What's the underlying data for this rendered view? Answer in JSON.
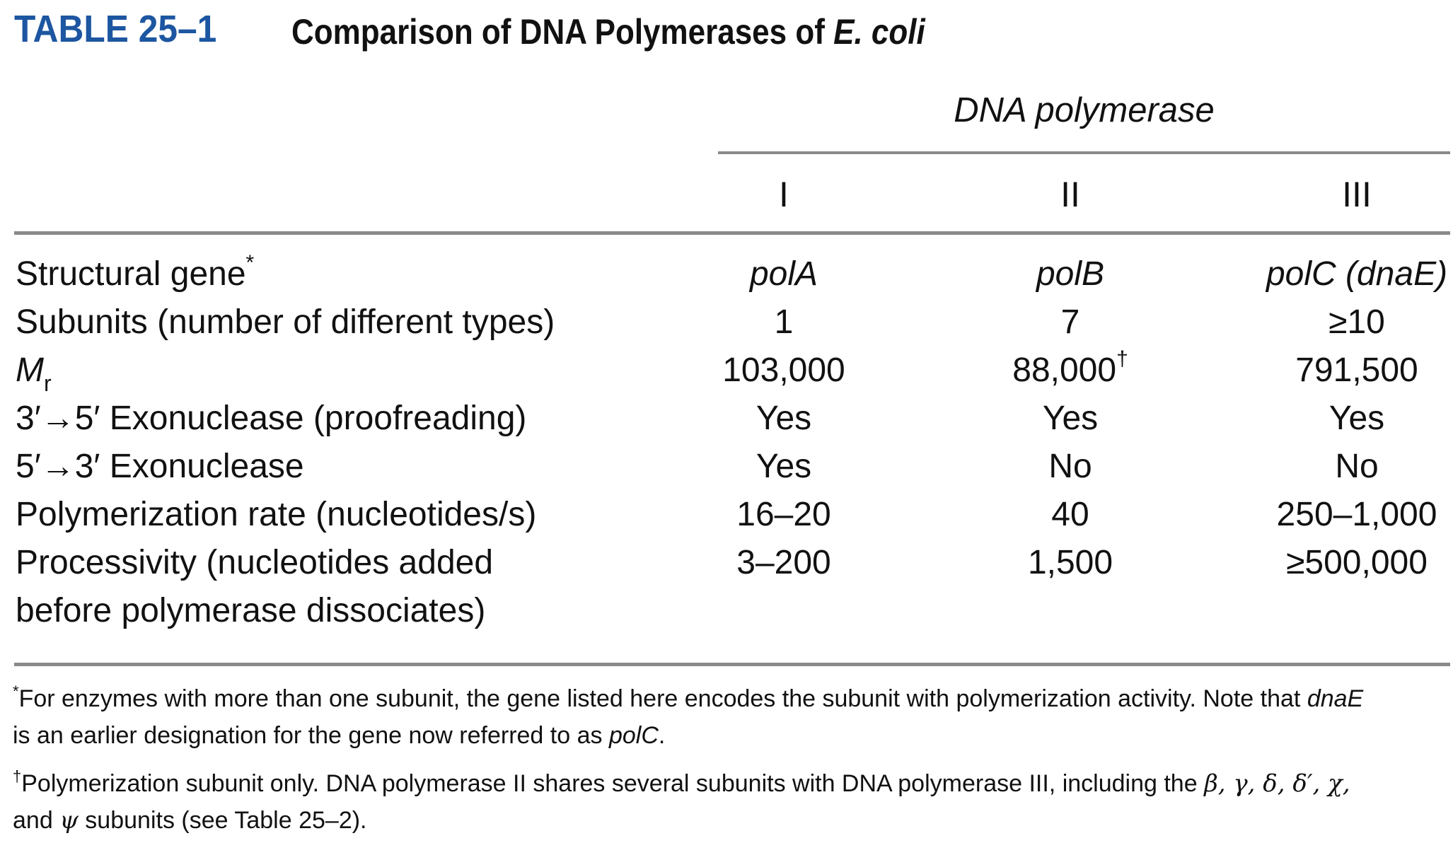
{
  "title": {
    "number": "TABLE 25–1",
    "text_prefix": "Comparison of DNA Polymerases of ",
    "text_organism": "E. coli"
  },
  "spanner": "DNA polymerase",
  "columns": [
    "I",
    "II",
    "III"
  ],
  "rows": [
    {
      "label": "Structural gene",
      "label_mark": "*",
      "values": [
        "polA",
        "polB",
        "polC (dnaE)"
      ]
    },
    {
      "label": "Subunits (number of different types)",
      "values": [
        "1",
        "7",
        "≥10"
      ]
    },
    {
      "label": "M",
      "label_sub": "r",
      "values": [
        "103,000",
        "88,000",
        "791,500"
      ],
      "value_mark_col2": "†"
    },
    {
      "label": "3′→5′ Exonuclease (proofreading)",
      "values": [
        "Yes",
        "Yes",
        "Yes"
      ]
    },
    {
      "label": "5′→3′ Exonuclease",
      "values": [
        "Yes",
        "No",
        "No"
      ]
    },
    {
      "label": "Polymerization rate (nucleotides/s)",
      "values": [
        "16–20",
        "40",
        "250–1,000"
      ]
    },
    {
      "label_line1": "Processivity (nucleotides added",
      "label_line2": "before polymerase dissociates)",
      "values": [
        "3–200",
        "1,500",
        "≥500,000"
      ]
    }
  ],
  "footnotes": {
    "fn1": {
      "mark": "*",
      "text_a": "For enzymes with more than one subunit, the gene listed here encodes the subunit with polymerization activity. Note that ",
      "ital_a": "dnaE",
      "text_b": "is an earlier designation for the gene now referred to as ",
      "ital_b": "polC",
      "text_c": "."
    },
    "fn2": {
      "mark": "†",
      "text_a": "Polymerization subunit only. DNA polymerase II shares several subunits with DNA polymerase III, including the ",
      "greek_a": "β, γ, δ, δ′, χ,",
      "text_b": "and ",
      "greek_b": "ψ",
      "text_c": " subunits (see Table 25–2)."
    }
  }
}
